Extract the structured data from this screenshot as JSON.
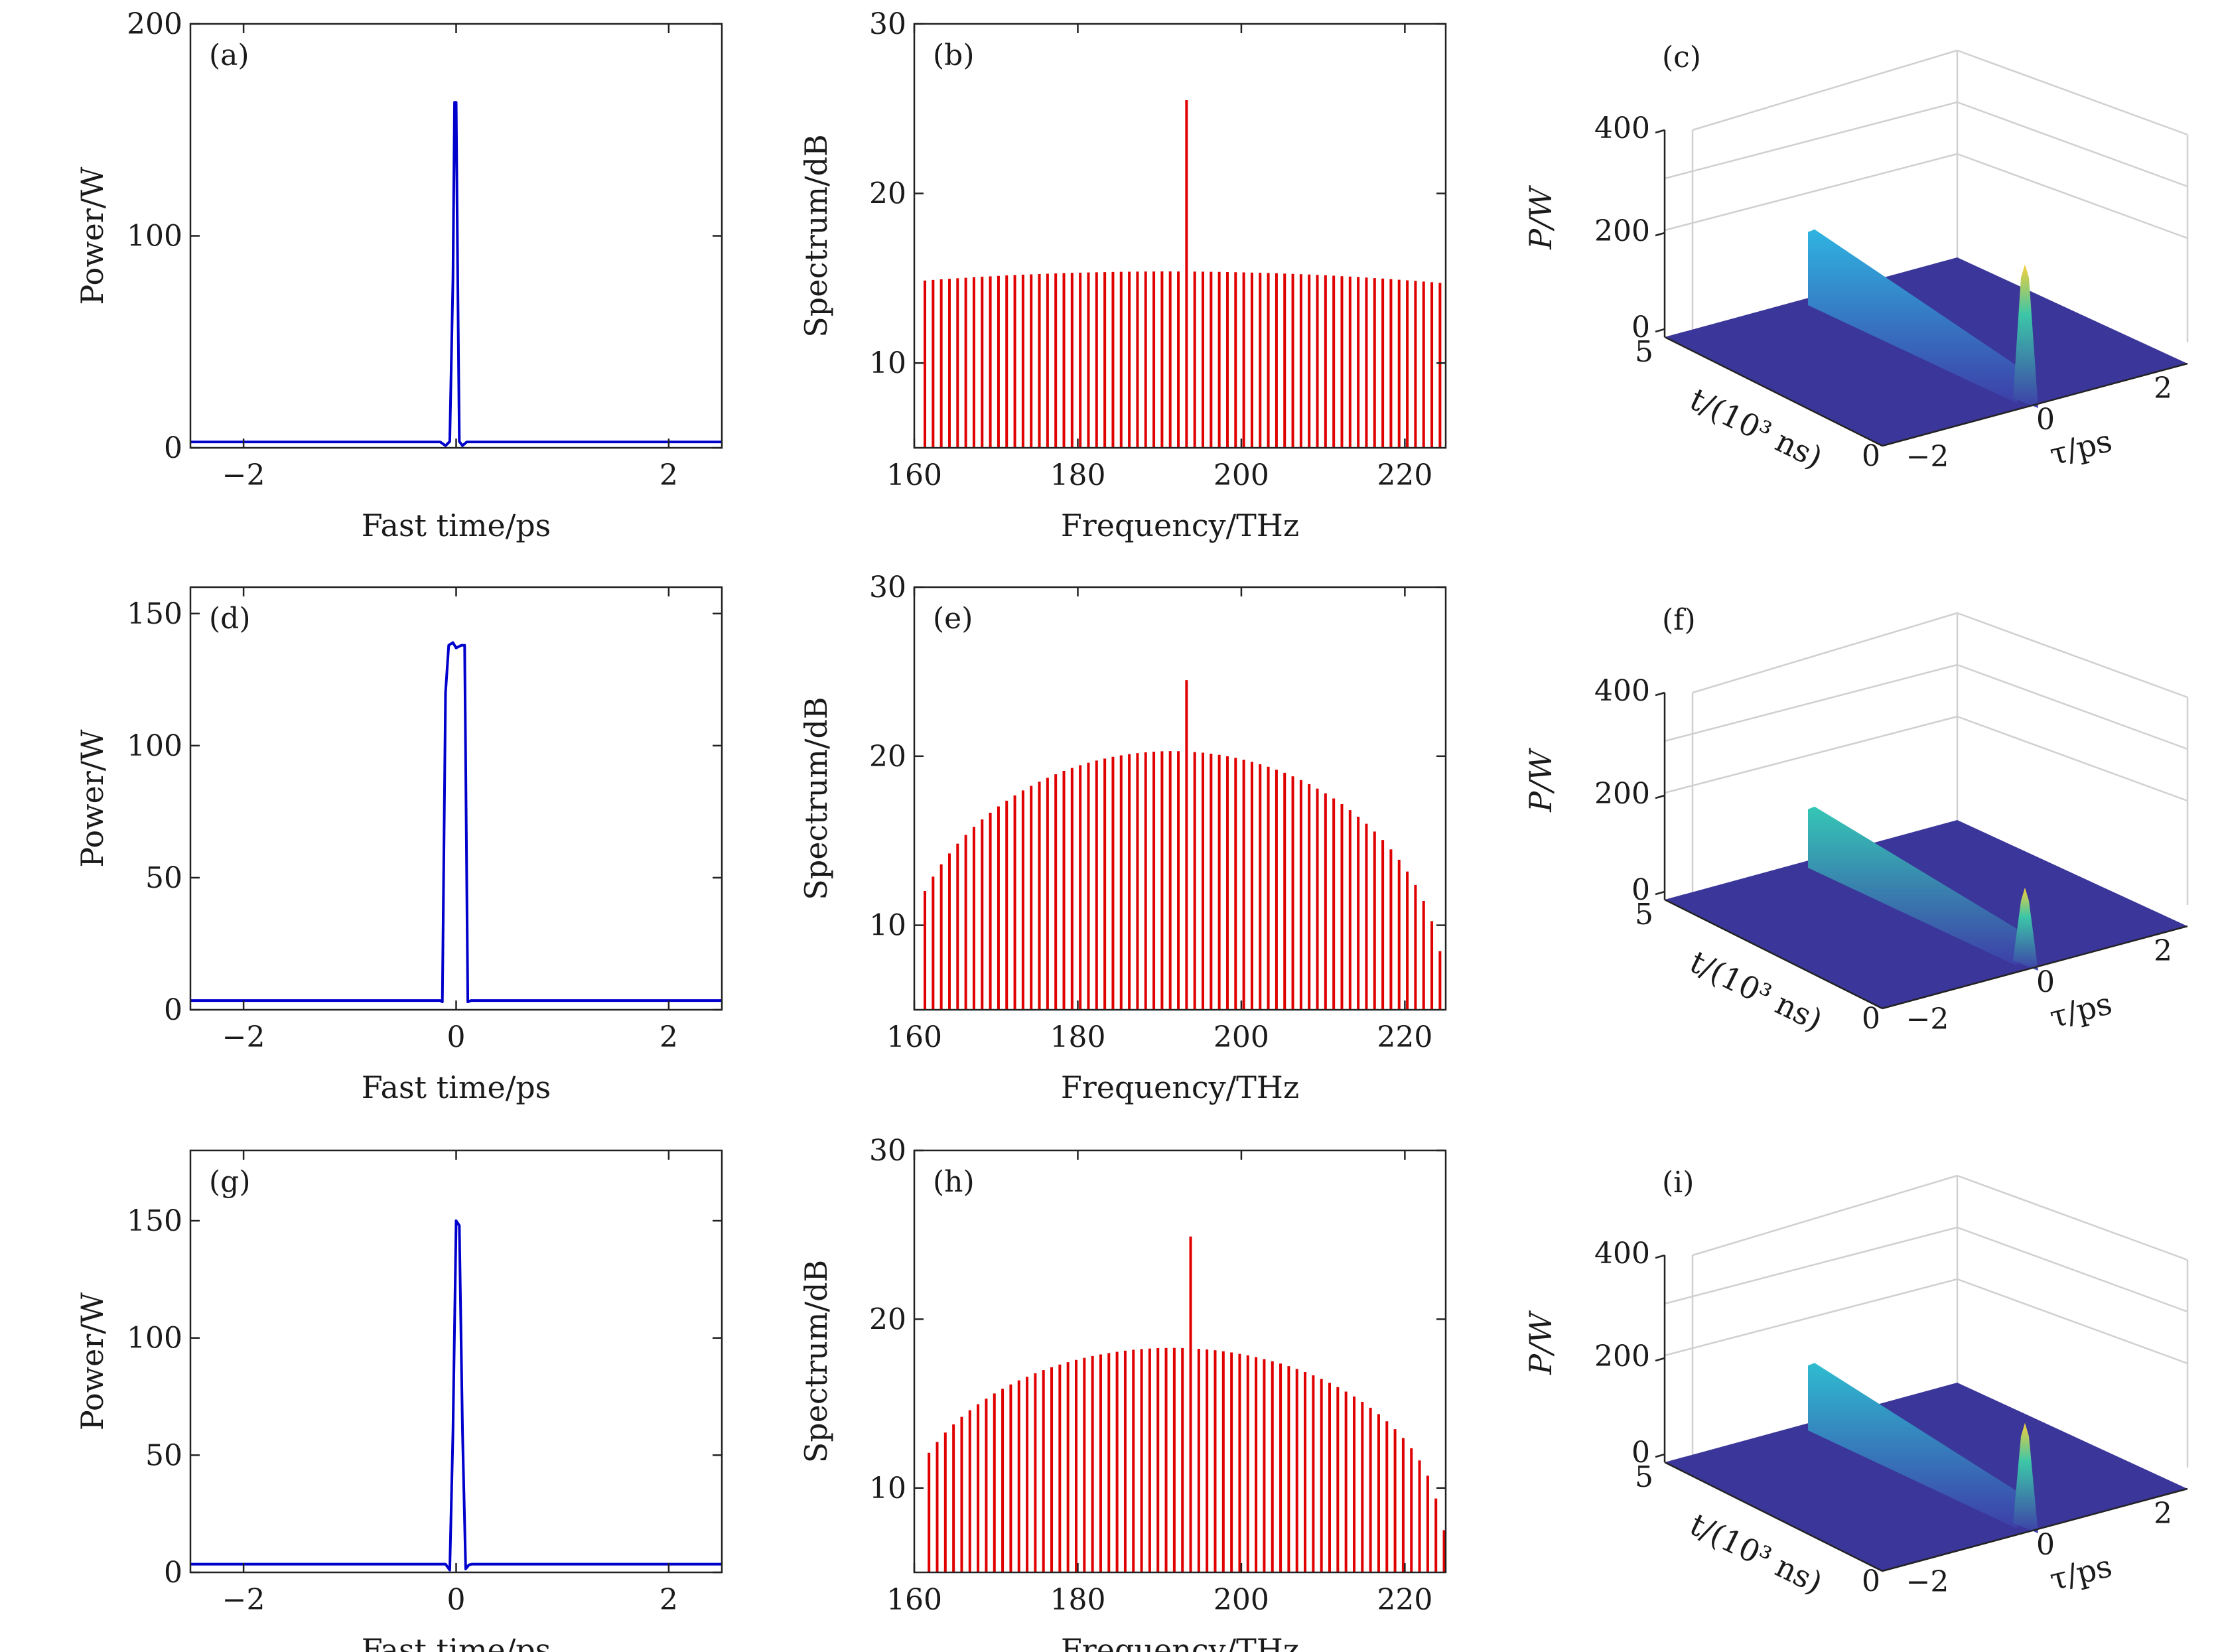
{
  "chart_data": [
    {
      "id": "a",
      "panel_label": "(a)",
      "type": "line",
      "xlabel": "Fast time/ps",
      "ylabel": "Power/W",
      "xlim": [
        -2.5,
        2.5
      ],
      "ylim": [
        0,
        200
      ],
      "xticks": [
        -2,
        0,
        2
      ],
      "xtick_labels": [
        "−2",
        "",
        "2"
      ],
      "yticks": [
        0,
        100,
        200
      ],
      "ytick_labels": [
        "0",
        "100",
        "200"
      ],
      "color": "#0000cc",
      "series": [
        {
          "name": "power",
          "x": [
            -2.5,
            -0.15,
            -0.1,
            -0.06,
            -0.03,
            -0.015,
            0.0,
            0.015,
            0.03,
            0.06,
            0.1,
            0.15,
            2.5
          ],
          "y": [
            2.8,
            2.8,
            1.0,
            3.0,
            80,
            163,
            163,
            80,
            3.0,
            1.0,
            2.8,
            2.8,
            2.8
          ]
        }
      ]
    },
    {
      "id": "b",
      "panel_label": "(b)",
      "type": "bar",
      "xlabel": "Frequency/THz",
      "ylabel": "Spectrum/dB",
      "xlim": [
        160,
        225
      ],
      "ylim": [
        5,
        30
      ],
      "xticks": [
        160,
        180,
        200,
        220
      ],
      "xtick_labels": [
        "160",
        "180",
        "200",
        "220"
      ],
      "yticks": [
        10,
        20,
        30
      ],
      "ytick_labels": [
        "10",
        "20",
        "30"
      ],
      "color": "#e00000",
      "spectrum": {
        "f_start": 161.3,
        "f_end": 224.3,
        "f_step": 1.0,
        "center": 193.4,
        "center_value": 25.5,
        "peak_value": 15.4,
        "edge_value": 14.7,
        "shape": "flat"
      }
    },
    {
      "id": "c",
      "panel_label": "(c)",
      "type": "surface3d",
      "zlabel": "P/W",
      "tlabel": "t/(10³ ns)",
      "taulabel": "τ/ps",
      "zticks": [
        "0",
        "200",
        "400"
      ],
      "tticks": [
        "0",
        "5"
      ],
      "tauticks": [
        "−2",
        "0",
        "2"
      ],
      "ridge_height": 175,
      "spike_height": 320,
      "ridge_color_top": "#2fb4e0"
    },
    {
      "id": "d",
      "panel_label": "(d)",
      "type": "line",
      "xlabel": "Fast time/ps",
      "ylabel": "Power/W",
      "xlim": [
        -2.5,
        2.5
      ],
      "ylim": [
        0,
        160
      ],
      "xticks": [
        -2,
        0,
        2
      ],
      "xtick_labels": [
        "−2",
        "0",
        "2"
      ],
      "yticks": [
        0,
        50,
        100,
        150
      ],
      "ytick_labels": [
        "0",
        "50",
        "100",
        "150"
      ],
      "color": "#0000cc",
      "series": [
        {
          "name": "power",
          "x": [
            -2.5,
            -0.15,
            -0.13,
            -0.1,
            -0.07,
            -0.03,
            0.0,
            0.05,
            0.08,
            0.11,
            0.14,
            2.5
          ],
          "y": [
            3.5,
            3.5,
            3.0,
            120,
            138,
            139,
            137,
            138,
            138,
            3.0,
            3.5,
            3.5
          ]
        }
      ]
    },
    {
      "id": "e",
      "panel_label": "(e)",
      "type": "bar",
      "xlabel": "Frequency/THz",
      "ylabel": "Spectrum/dB",
      "xlim": [
        160,
        225
      ],
      "ylim": [
        5,
        30
      ],
      "xticks": [
        160,
        180,
        200,
        220
      ],
      "xtick_labels": [
        "160",
        "180",
        "200",
        "220"
      ],
      "yticks": [
        10,
        20,
        30
      ],
      "ytick_labels": [
        "10",
        "20",
        "30"
      ],
      "color": "#e00000",
      "spectrum": {
        "f_start": 161.3,
        "f_end": 224.3,
        "f_step": 1.0,
        "center": 193.4,
        "center_value": 24.5,
        "peak_value": 20.3,
        "edge_value": 6.0,
        "shape": "dome"
      }
    },
    {
      "id": "f",
      "panel_label": "(f)",
      "type": "surface3d",
      "zlabel": "P/W",
      "tlabel": "t/(10³ ns)",
      "taulabel": "τ/ps",
      "zticks": [
        "0",
        "200",
        "400"
      ],
      "tticks": [
        "0",
        "5"
      ],
      "tauticks": [
        "−2",
        "0",
        "2"
      ],
      "ridge_height": 140,
      "spike_height": 175,
      "ridge_color_top": "#35c7b5"
    },
    {
      "id": "g",
      "panel_label": "(g)",
      "type": "line",
      "xlabel": "Fast time/ps",
      "ylabel": "Power/W",
      "xlim": [
        -2.5,
        2.5
      ],
      "ylim": [
        0,
        180
      ],
      "xticks": [
        -2,
        0,
        2
      ],
      "xtick_labels": [
        "−2",
        "0",
        "2"
      ],
      "yticks": [
        0,
        50,
        100,
        150
      ],
      "ytick_labels": [
        "0",
        "50",
        "100",
        "150"
      ],
      "color": "#0000cc",
      "series": [
        {
          "name": "power",
          "x": [
            -2.5,
            -0.1,
            -0.06,
            -0.03,
            0.0,
            0.03,
            0.06,
            0.09,
            0.12,
            0.15,
            2.5
          ],
          "y": [
            3.5,
            3.5,
            1.0,
            60,
            150,
            148,
            60,
            1.5,
            3.2,
            3.5,
            3.5
          ]
        }
      ]
    },
    {
      "id": "h",
      "panel_label": "(h)",
      "type": "bar",
      "xlabel": "Frequency/THz",
      "ylabel": "Spectrum/dB",
      "xlim": [
        160,
        225
      ],
      "ylim": [
        5,
        30
      ],
      "xticks": [
        160,
        180,
        200,
        220
      ],
      "xtick_labels": [
        "160",
        "180",
        "200",
        "220"
      ],
      "yticks": [
        10,
        20,
        30
      ],
      "ytick_labels": [
        "10",
        "20",
        "30"
      ],
      "color": "#e00000",
      "spectrum": {
        "f_start": 161.8,
        "f_end": 224.8,
        "f_step": 1.0,
        "center": 193.4,
        "center_value": 24.9,
        "peak_value": 18.3,
        "edge_value": 7.5,
        "shape": "dome"
      }
    },
    {
      "id": "i",
      "panel_label": "(i)",
      "type": "surface3d",
      "zlabel": "P/W",
      "tlabel": "t/(10³ ns)",
      "taulabel": "τ/ps",
      "zticks": [
        "0",
        "200",
        "400"
      ],
      "tticks": [
        "0",
        "5"
      ],
      "tauticks": [
        "−2",
        "0",
        "2"
      ],
      "ridge_height": 155,
      "spike_height": 240,
      "ridge_color_top": "#2fbcd0"
    }
  ]
}
